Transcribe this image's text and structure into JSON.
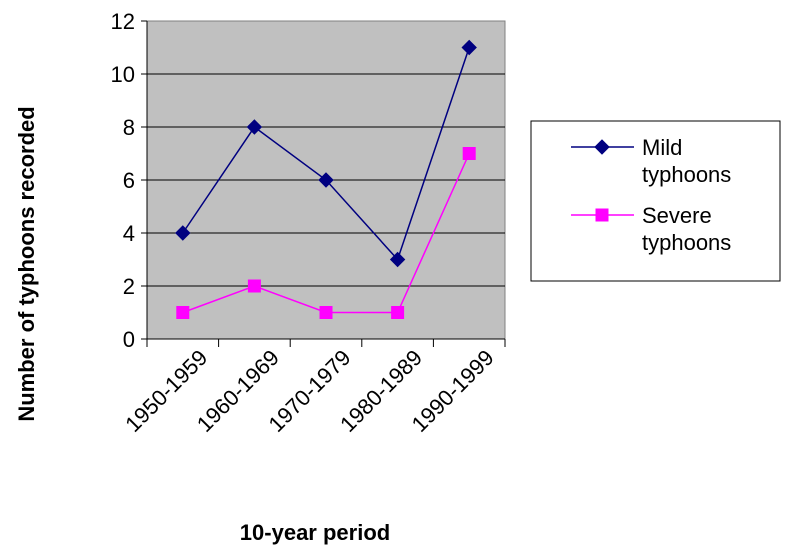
{
  "chart_data": {
    "type": "line",
    "categories": [
      "1950-1959",
      "1960-1969",
      "1970-1979",
      "1980-1989",
      "1990-1999"
    ],
    "series": [
      {
        "name": "Mild typhoons",
        "name_lines": [
          "Mild",
          "typhoons"
        ],
        "values": [
          4,
          8,
          6,
          3,
          11
        ],
        "color": "#000080",
        "marker": "diamond"
      },
      {
        "name": "Severe typhoons",
        "name_lines": [
          "Severe",
          "typhoons"
        ],
        "values": [
          1,
          2,
          1,
          1,
          7
        ],
        "color": "#ff00ff",
        "marker": "square"
      }
    ],
    "xlabel": "10-year period",
    "ylabel": "Number of typhoons recorded",
    "ylim": [
      0,
      12
    ],
    "yticks": [
      0,
      2,
      4,
      6,
      8,
      10,
      12
    ],
    "grid": "horizontal",
    "plot_background": "#c0c0c0",
    "legend": "right"
  }
}
